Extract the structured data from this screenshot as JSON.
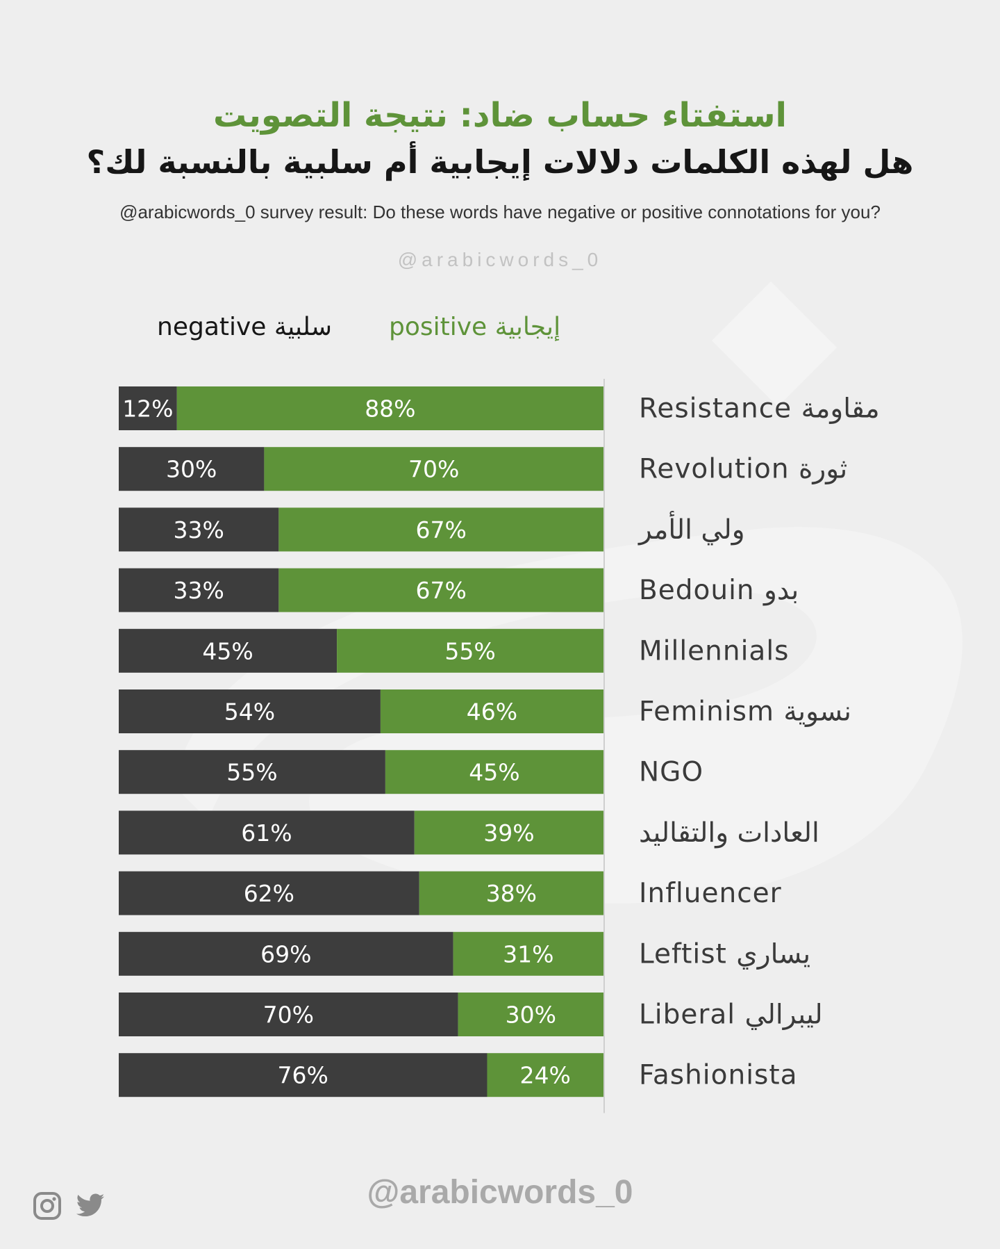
{
  "header": {
    "title_ar": "استفتاء حساب ضاد: نتيجة التصويت",
    "subtitle_ar": "هل لهذه الكلمات دلالات إيجابية أم سلبية بالنسبة لك؟",
    "subtitle_en": "@arabicwords_0 survey result: Do these words have negative or positive connotations for you?",
    "handle": "@arabicwords_0"
  },
  "legend": {
    "negative": "negative سلبية",
    "positive": "positive إيجابية"
  },
  "colors": {
    "negative": "#3d3d3d",
    "positive": "#5e9339",
    "background": "#eeeeee",
    "label_text": "#3a3a3a"
  },
  "chart_data": {
    "type": "bar",
    "orientation": "horizontal",
    "stacked": true,
    "title": "Do these words have negative or positive connotations for you?",
    "xlim": [
      0,
      100
    ],
    "categories": [
      "Resistance مقاومة",
      "Revolution ثورة",
      "ولي الأمر",
      "Bedouin بدو",
      "Millennials",
      "Feminism نسوية",
      "NGO",
      "العادات والتقاليد",
      "Influencer",
      "Leftist يساري",
      "Liberal ليبرالي",
      "Fashionista"
    ],
    "series": [
      {
        "name": "negative",
        "values": [
          12,
          30,
          33,
          33,
          45,
          54,
          55,
          61,
          62,
          69,
          70,
          76
        ],
        "labels": [
          "12%",
          "30%",
          "33%",
          "33%",
          "45%",
          "54%",
          "55%",
          "61%",
          "62%",
          "69%",
          "70%",
          "76%"
        ]
      },
      {
        "name": "positive",
        "values": [
          88,
          70,
          67,
          67,
          55,
          46,
          45,
          39,
          38,
          31,
          30,
          24
        ],
        "labels": [
          "88%",
          "70%",
          "67%",
          "67%",
          "55%",
          "46%",
          "45%",
          "39%",
          "38%",
          "31%",
          "30%",
          "24%"
        ]
      }
    ]
  },
  "footer": {
    "handle": "@arabicwords_0",
    "icons": [
      "instagram-icon",
      "twitter-icon"
    ]
  }
}
